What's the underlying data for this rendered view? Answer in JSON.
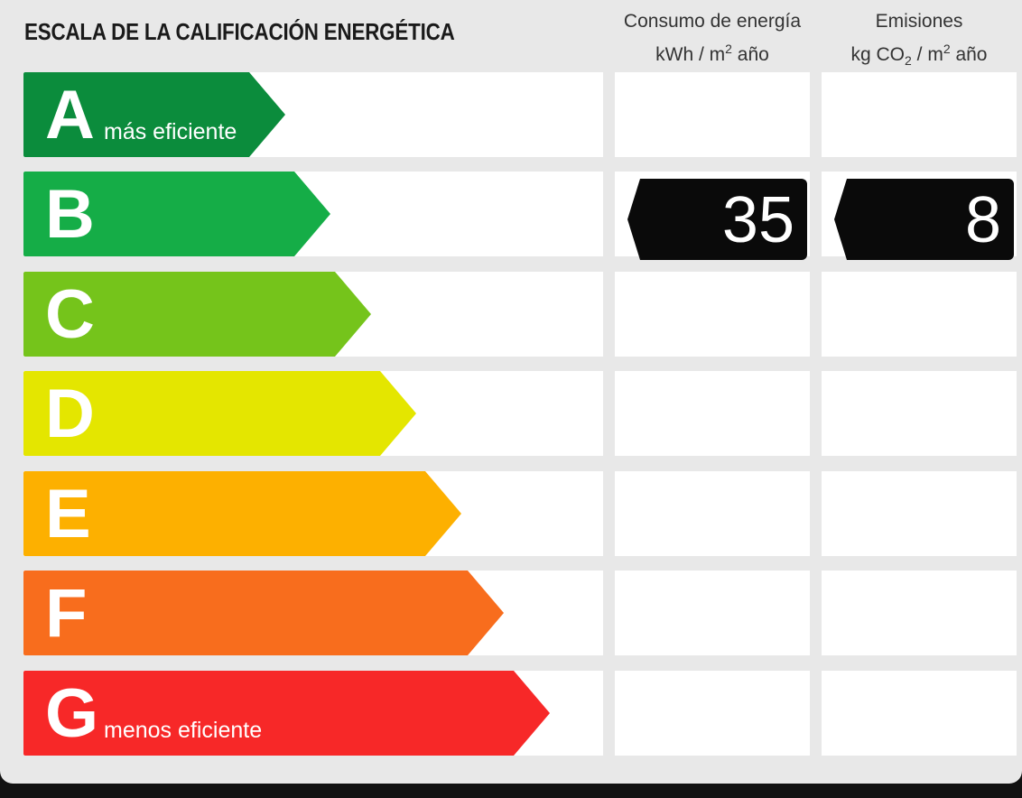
{
  "title": "ESCALA DE LA CALIFICACIÓN ENERGÉTICA",
  "columns": {
    "energy": {
      "line1": "Consumo de energía",
      "unit_a": "kWh / m",
      "unit_sup": "2",
      "unit_b": " año"
    },
    "emissions": {
      "line1": "Emisiones",
      "unit_a": "kg CO",
      "unit_sub": "2",
      "unit_c": " / m",
      "unit_sup": "2",
      "unit_b": " año"
    }
  },
  "ratings": [
    {
      "letter": "A",
      "label": "más eficiente",
      "color": "#0b8c3c"
    },
    {
      "letter": "B",
      "label": "",
      "color": "#15ad47"
    },
    {
      "letter": "C",
      "label": "",
      "color": "#75c41b"
    },
    {
      "letter": "D",
      "label": "",
      "color": "#e4e600"
    },
    {
      "letter": "E",
      "label": "",
      "color": "#fdb000"
    },
    {
      "letter": "F",
      "label": "",
      "color": "#f86d1d"
    },
    {
      "letter": "G",
      "label": "menos eficiente",
      "color": "#f72828"
    }
  ],
  "current": {
    "rating": "B",
    "energy_value": "35",
    "emissions_value": "8"
  }
}
